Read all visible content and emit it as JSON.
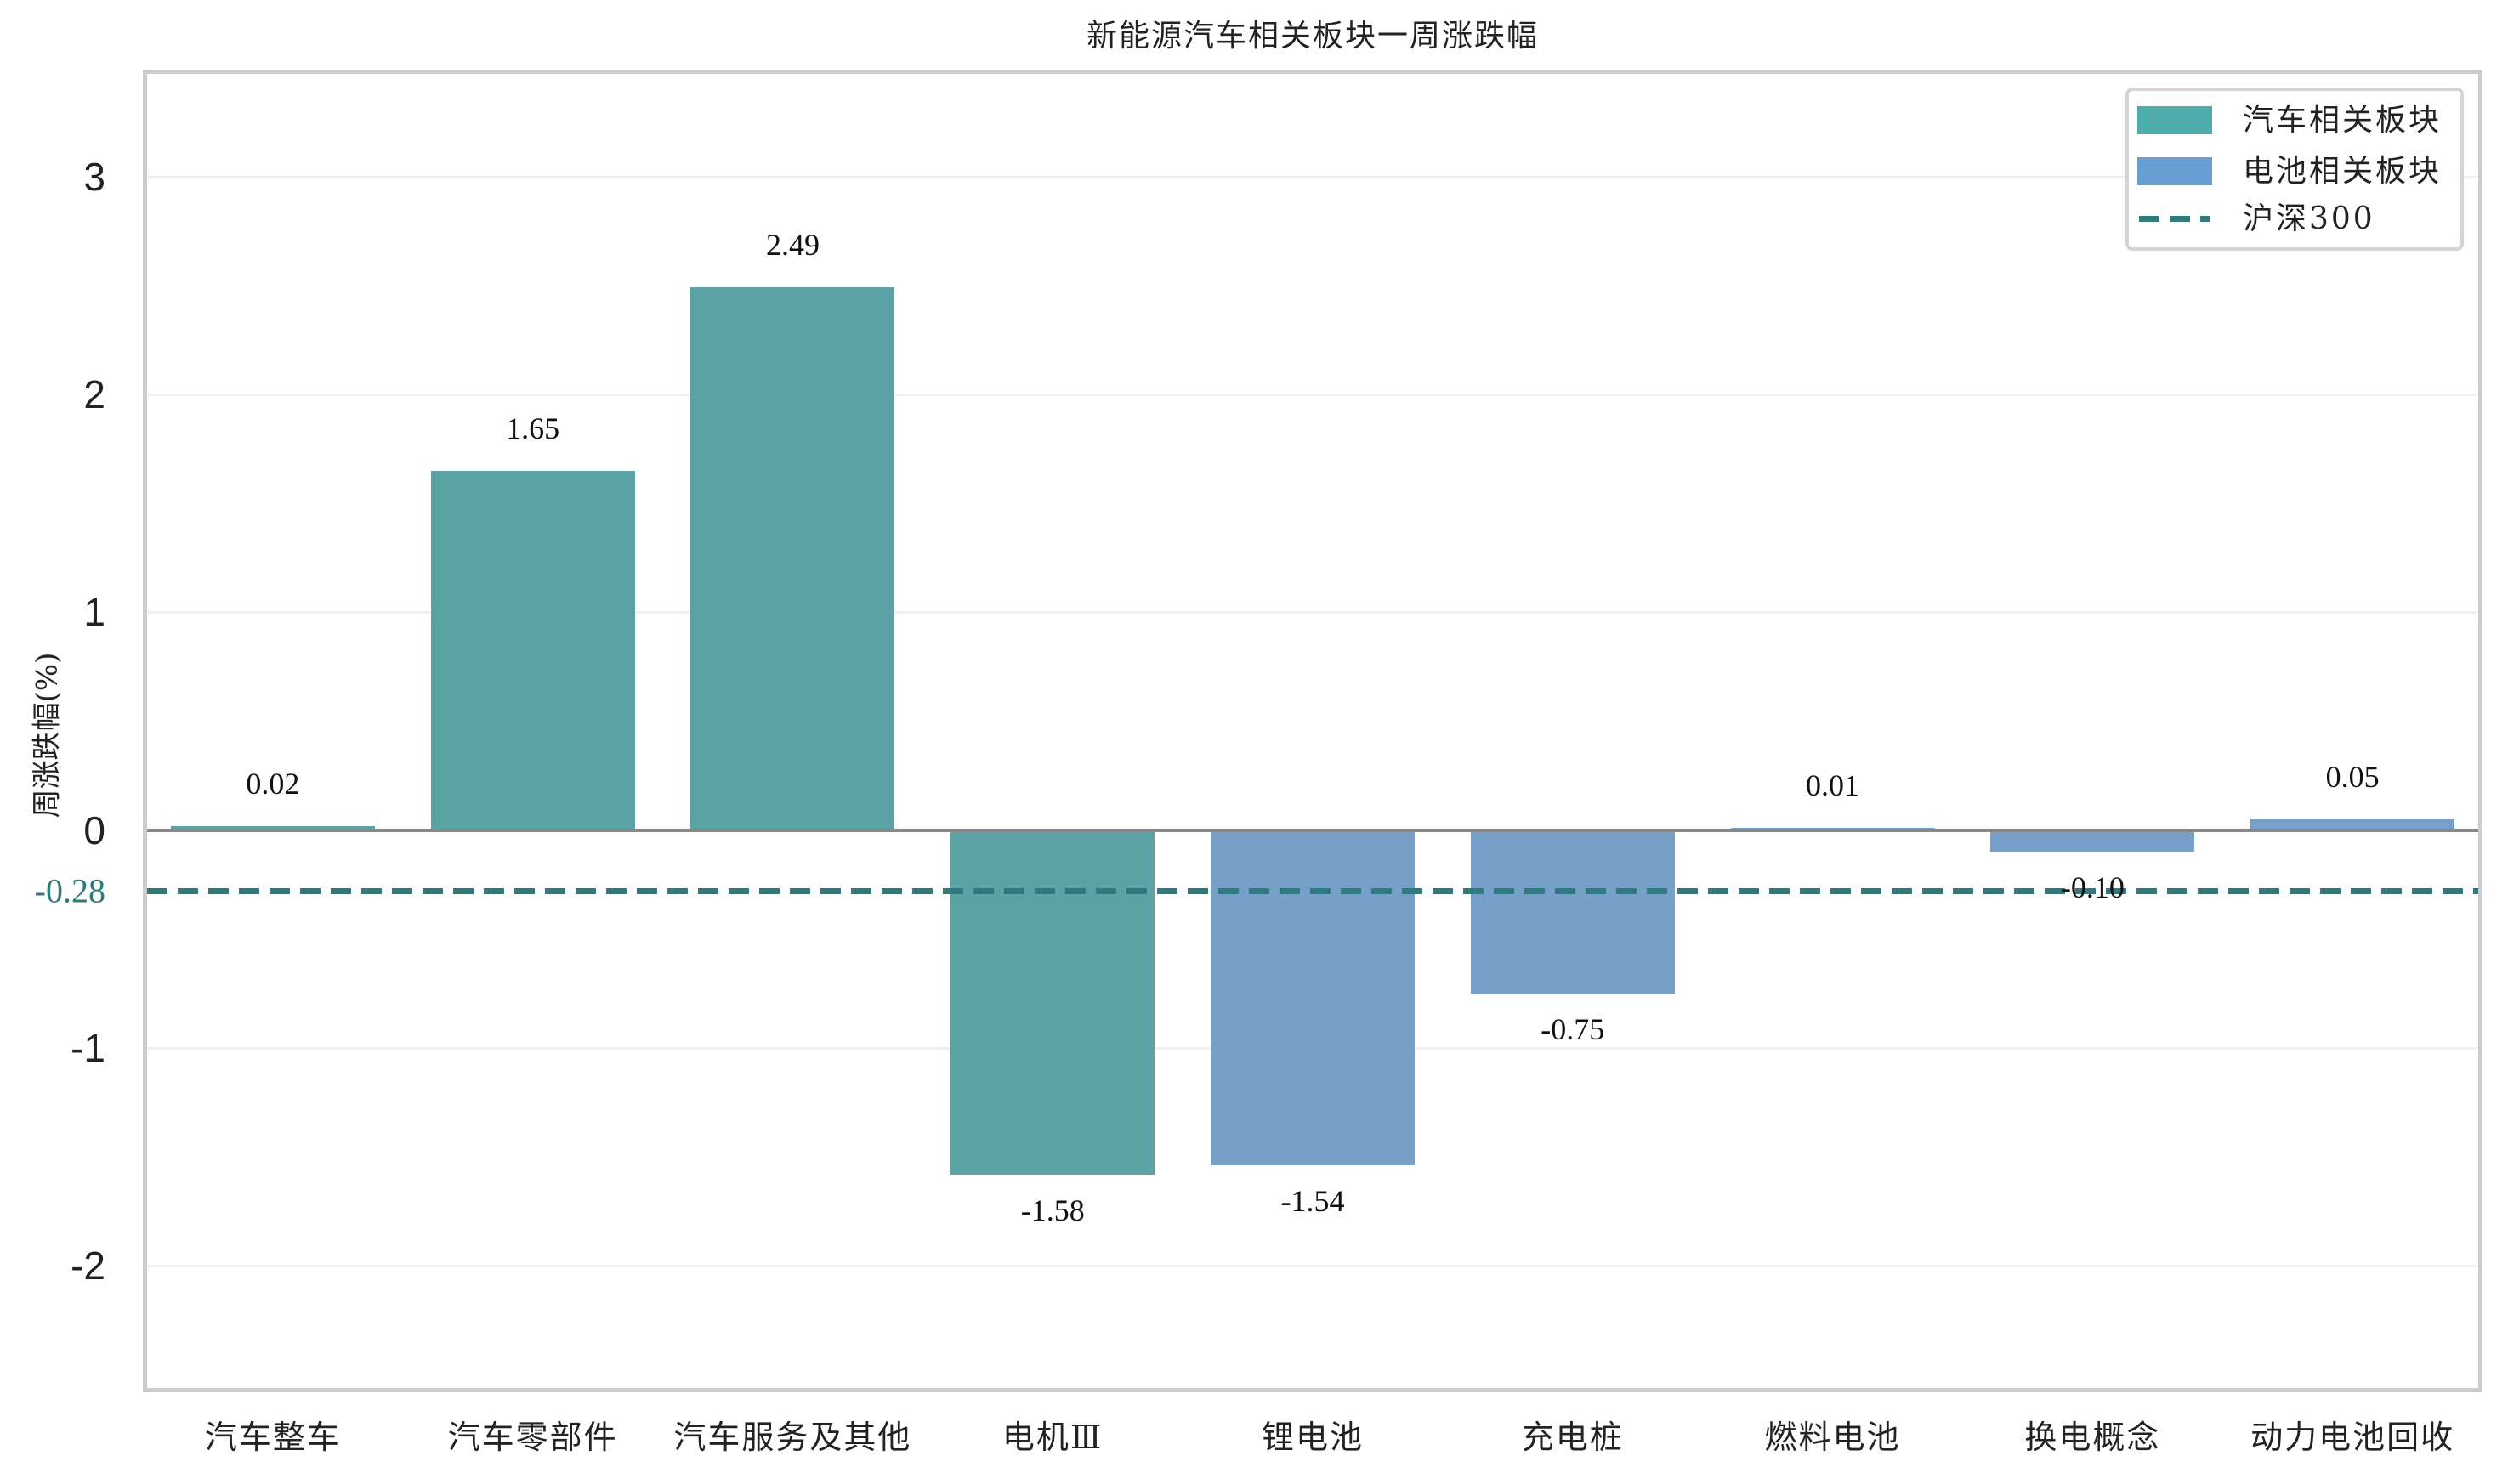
{
  "chart_data": {
    "type": "bar",
    "title": "新能源汽车相关板块一周涨跌幅",
    "xlabel": "",
    "ylabel": "周涨跌幅(%)",
    "ylim": [
      -2.58,
      3.49
    ],
    "yticks": [
      -2,
      -1,
      0,
      1,
      2,
      3
    ],
    "grid": true,
    "legend_position": "upper right",
    "categories": [
      "汽车整车",
      "汽车零部件",
      "汽车服务及其他",
      "电机Ⅲ",
      "锂电池",
      "充电桩",
      "燃料电池",
      "换电概念",
      "动力电池回收"
    ],
    "values": [
      0.02,
      1.65,
      2.49,
      -1.58,
      -1.54,
      -0.75,
      0.01,
      -0.1,
      0.05
    ],
    "value_labels": [
      "0.02",
      "1.65",
      "2.49",
      "-1.58",
      "-1.54",
      "-0.75",
      "0.01",
      "-0.10",
      "0.05"
    ],
    "groups": [
      "auto",
      "auto",
      "auto",
      "auto",
      "battery",
      "battery",
      "battery",
      "battery",
      "battery"
    ],
    "series": [
      {
        "name": "汽车相关板块",
        "key": "auto",
        "color": "#4FACAC",
        "bar_color": "#5BA2A5"
      },
      {
        "name": "电池相关板块",
        "key": "battery",
        "color": "#689ED2",
        "bar_color": "#77A0C8"
      }
    ],
    "reference_line": {
      "name": "沪深300",
      "value": -0.28,
      "label": "-0.28",
      "style": "dashed",
      "color": "#2E7B7E"
    }
  }
}
